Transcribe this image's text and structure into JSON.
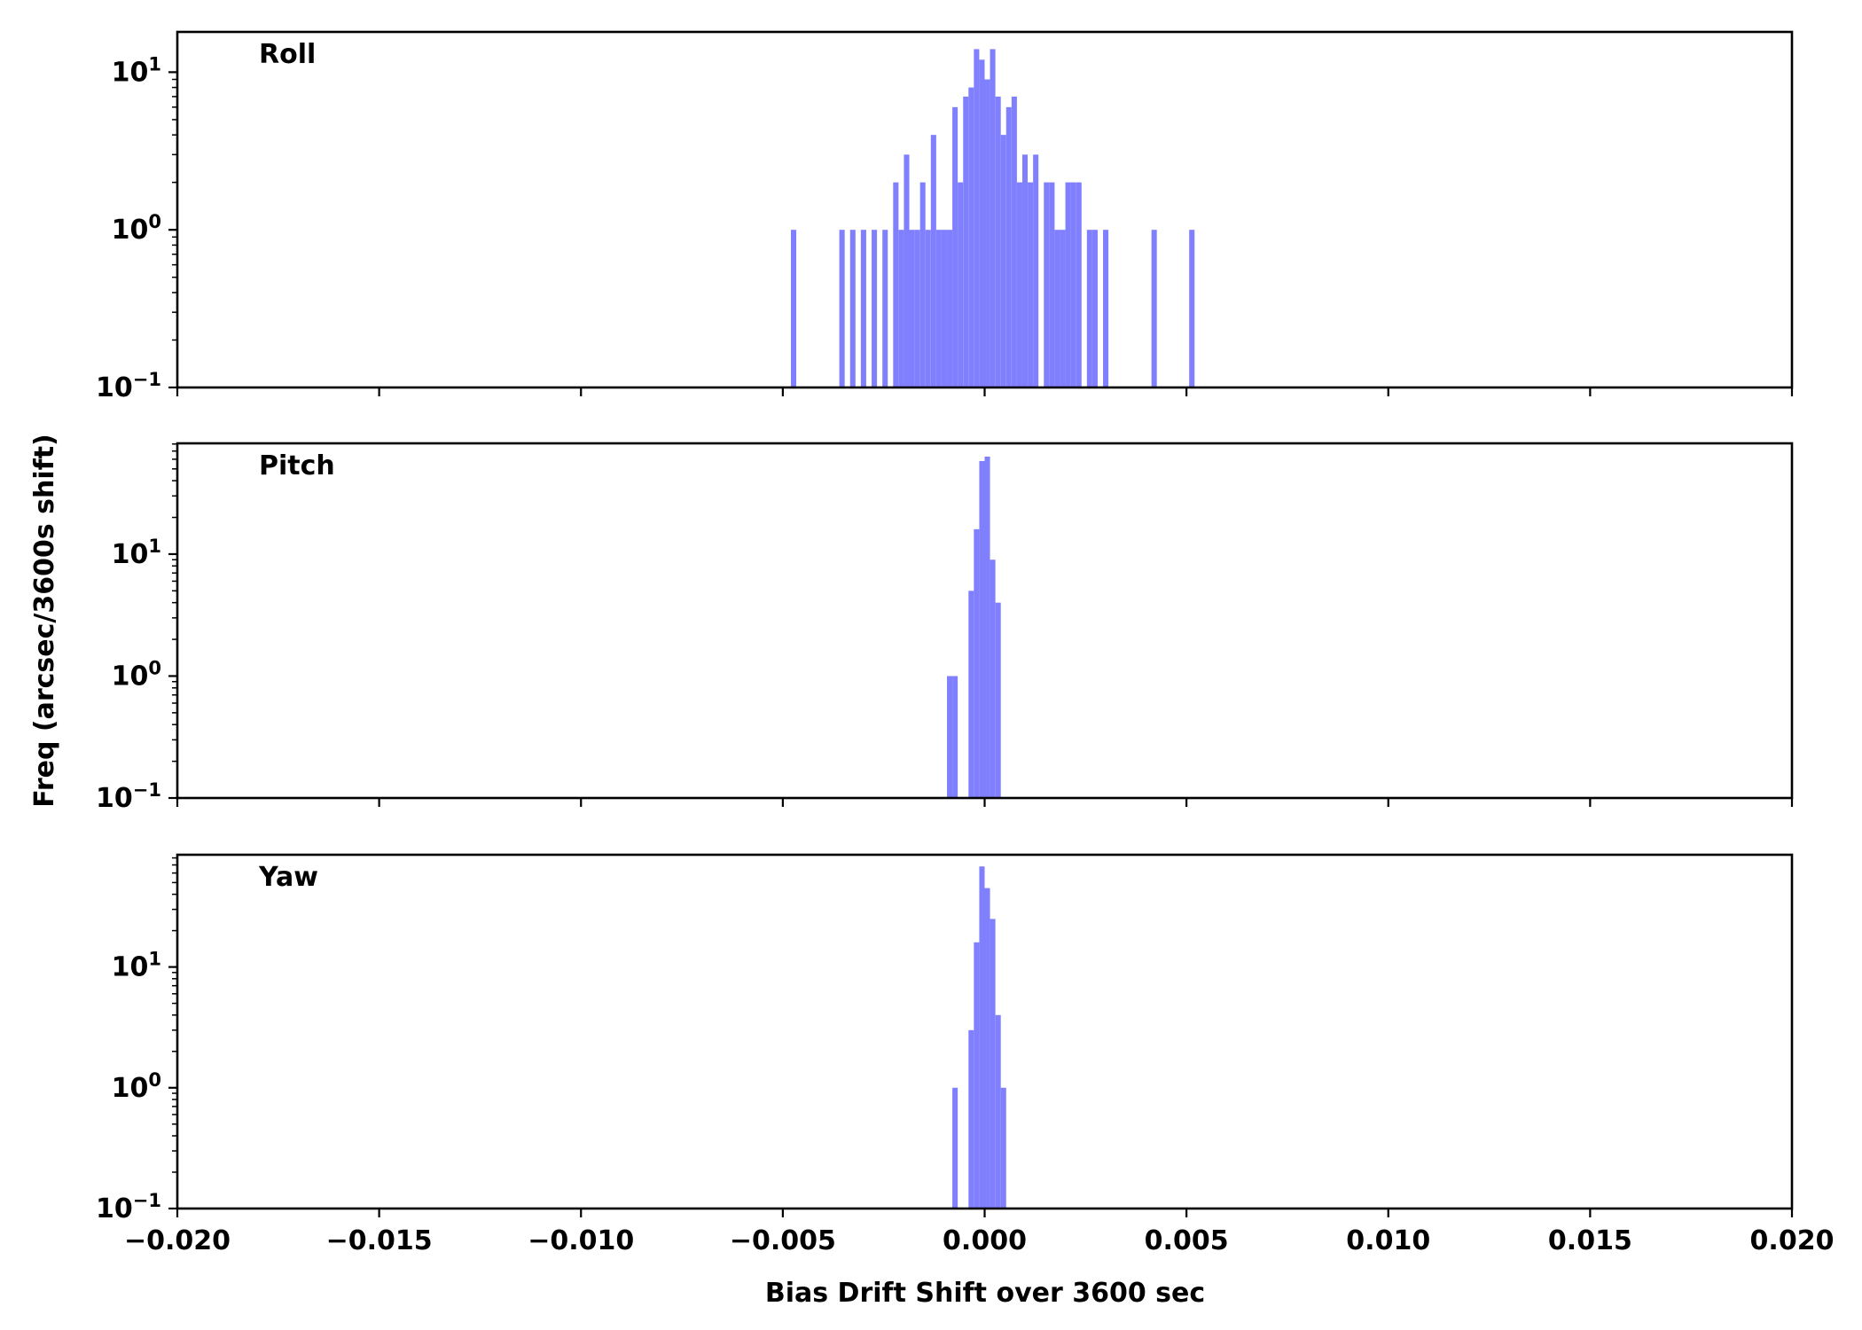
{
  "chart_data": {
    "type": "bar",
    "subtype": "histogram",
    "xlabel": "Bias Drift Shift over 3600 sec",
    "ylabel": "Freq (arcsec/3600s shift)",
    "xlim": [
      -0.02,
      0.02
    ],
    "x_ticks": [
      "−0.020",
      "−0.015",
      "−0.010",
      "−0.005",
      "0.000",
      "0.005",
      "0.010",
      "0.015",
      "0.020"
    ],
    "x_tick_values": [
      -0.02,
      -0.015,
      -0.01,
      -0.005,
      0,
      0.005,
      0.01,
      0.015,
      0.02
    ],
    "yscale": "log",
    "bar_color": "#8080ff",
    "bin_width": 0.000133,
    "grid": false,
    "panels": [
      {
        "label": "Roll",
        "ylim": [
          0.1,
          18
        ],
        "y_ticks": [
          {
            "base": "10",
            "exp": "−1",
            "value": 0.1
          },
          {
            "base": "10",
            "exp": "0",
            "value": 1
          },
          {
            "base": "10",
            "exp": "1",
            "value": 10
          }
        ],
        "bins": [
          [
            -0.0048,
            1
          ],
          [
            -0.0036,
            1
          ],
          [
            -0.003333,
            1
          ],
          [
            -0.003067,
            1
          ],
          [
            -0.0028,
            1
          ],
          [
            -0.002533,
            1
          ],
          [
            -0.002267,
            2
          ],
          [
            -0.002133,
            1
          ],
          [
            -0.002,
            3
          ],
          [
            -0.001867,
            1
          ],
          [
            -0.001733,
            1
          ],
          [
            -0.0016,
            2
          ],
          [
            -0.001467,
            1
          ],
          [
            -0.001333,
            4
          ],
          [
            -0.0012,
            1
          ],
          [
            -0.001067,
            1
          ],
          [
            -0.000933,
            1
          ],
          [
            -0.0008,
            6
          ],
          [
            -0.000667,
            2
          ],
          [
            -0.000533,
            7
          ],
          [
            -0.0004,
            8
          ],
          [
            -0.000267,
            14
          ],
          [
            -0.000133,
            12
          ],
          [
            0,
            9
          ],
          [
            0.000133,
            14
          ],
          [
            0.000267,
            7
          ],
          [
            0.0004,
            4
          ],
          [
            0.000533,
            6
          ],
          [
            0.000667,
            7
          ],
          [
            0.0008,
            2
          ],
          [
            0.000933,
            3
          ],
          [
            0.001067,
            2
          ],
          [
            0.0012,
            3
          ],
          [
            0.001467,
            2
          ],
          [
            0.0016,
            2
          ],
          [
            0.001733,
            1
          ],
          [
            0.001867,
            1
          ],
          [
            0.002,
            2
          ],
          [
            0.002133,
            2
          ],
          [
            0.002267,
            2
          ],
          [
            0.002533,
            1
          ],
          [
            0.002667,
            1
          ],
          [
            0.002933,
            1
          ],
          [
            0.004133,
            1
          ],
          [
            0.005067,
            1
          ]
        ]
      },
      {
        "label": "Pitch",
        "ylim": [
          0.1,
          81
        ],
        "y_ticks": [
          {
            "base": "10",
            "exp": "−1",
            "value": 0.1
          },
          {
            "base": "10",
            "exp": "0",
            "value": 1
          },
          {
            "base": "10",
            "exp": "1",
            "value": 10
          }
        ],
        "bins": [
          [
            -0.000933,
            1
          ],
          [
            -0.0008,
            1
          ],
          [
            -0.0004,
            5
          ],
          [
            -0.000267,
            16
          ],
          [
            -0.000133,
            58
          ],
          [
            0,
            63
          ],
          [
            0.000133,
            9
          ],
          [
            0.000267,
            4
          ]
        ]
      },
      {
        "label": "Yaw",
        "ylim": [
          0.1,
          85
        ],
        "y_ticks": [
          {
            "base": "10",
            "exp": "−1",
            "value": 0.1
          },
          {
            "base": "10",
            "exp": "0",
            "value": 1
          },
          {
            "base": "10",
            "exp": "1",
            "value": 10
          }
        ],
        "bins": [
          [
            -0.0008,
            1
          ],
          [
            -0.0004,
            3
          ],
          [
            -0.000267,
            16
          ],
          [
            -0.000133,
            68
          ],
          [
            0,
            45
          ],
          [
            0.000133,
            25
          ],
          [
            0.000267,
            4
          ],
          [
            0.0004,
            1
          ]
        ]
      }
    ]
  }
}
